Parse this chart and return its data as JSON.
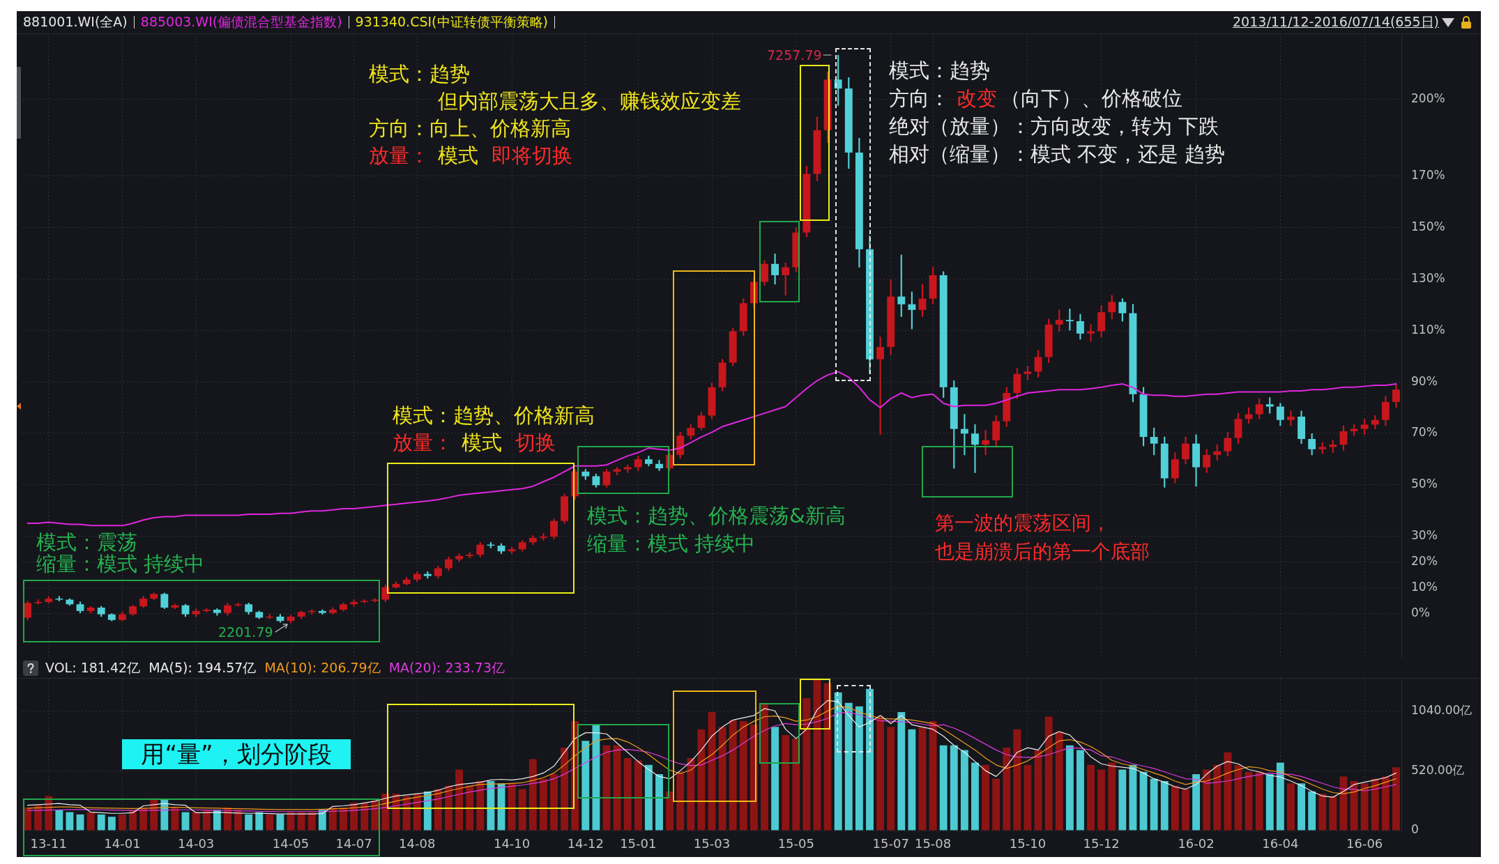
{
  "chart_data": [
    {
      "type": "candlestick",
      "title": "881001.WI(全A)",
      "categories": [
        null,
        null,
        null,
        null,
        null,
        null,
        null,
        null,
        null,
        null,
        null,
        null,
        null,
        null,
        null,
        null,
        null,
        null,
        null,
        null,
        null,
        null,
        null,
        null,
        null,
        null,
        null,
        null,
        null,
        null,
        null,
        null,
        null,
        null,
        null,
        null,
        null,
        null,
        null,
        null,
        null,
        null,
        null,
        null,
        null,
        null,
        null,
        null,
        null,
        null,
        null,
        null,
        null,
        null,
        null,
        null,
        null,
        null,
        null,
        null,
        null,
        null,
        null,
        null,
        null,
        null,
        null,
        null,
        null,
        null,
        null,
        null,
        null,
        null,
        null,
        null,
        null,
        null,
        null,
        null,
        null,
        null,
        null,
        null,
        null,
        null,
        null,
        null,
        null,
        null,
        null,
        null,
        null,
        null,
        null,
        null,
        null,
        null,
        null,
        null,
        null,
        null,
        null,
        null,
        null,
        null,
        null,
        null,
        null,
        null,
        null,
        null,
        null,
        null,
        null,
        null,
        null,
        null,
        null,
        null,
        null,
        null,
        null,
        null,
        null,
        null,
        null,
        null,
        null,
        null,
        null
      ],
      "series": [
        {
          "ohlc": [
            [
              -1.7,
              4.8,
              -2.6,
              4.0
            ],
            [
              4.0,
              5.3,
              3.5,
              4.4
            ],
            [
              4.4,
              6.6,
              4.0,
              5.7
            ],
            [
              5.7,
              6.6,
              4.8,
              5.3
            ],
            [
              5.3,
              5.7,
              3.1,
              3.5
            ],
            [
              3.5,
              4.4,
              0.0,
              0.9
            ],
            [
              0.9,
              2.7,
              0.0,
              2.2
            ],
            [
              2.2,
              2.7,
              -1.3,
              -0.4
            ],
            [
              -0.4,
              0.0,
              -3.0,
              -2.6
            ],
            [
              -2.6,
              0.5,
              -3.0,
              -0.4
            ],
            [
              -0.4,
              3.1,
              -0.8,
              2.7
            ],
            [
              2.7,
              6.6,
              2.2,
              5.7
            ],
            [
              5.7,
              7.9,
              5.3,
              7.5
            ],
            [
              7.5,
              7.9,
              1.8,
              2.2
            ],
            [
              2.2,
              3.5,
              1.8,
              3.1
            ],
            [
              3.1,
              3.5,
              -1.3,
              -0.4
            ],
            [
              -0.4,
              1.8,
              -1.3,
              0.9
            ],
            [
              0.9,
              1.8,
              0.5,
              1.4
            ],
            [
              1.4,
              1.8,
              -0.8,
              0.0
            ],
            [
              0.0,
              4.0,
              -0.8,
              3.1
            ],
            [
              3.1,
              4.0,
              2.7,
              3.5
            ],
            [
              3.5,
              4.0,
              -0.4,
              0.5
            ],
            [
              0.5,
              0.9,
              -2.1,
              -1.7
            ],
            [
              -1.7,
              -0.4,
              -2.1,
              -1.3
            ],
            [
              -1.3,
              -0.4,
              -3.5,
              -3.0
            ],
            [
              -3.0,
              -0.8,
              -3.8,
              -1.3
            ],
            [
              -1.3,
              0.9,
              -2.1,
              0.5
            ],
            [
              0.5,
              1.4,
              -0.4,
              0.9
            ],
            [
              0.9,
              1.4,
              -0.4,
              0.0
            ],
            [
              0.0,
              2.2,
              -0.4,
              1.4
            ],
            [
              1.4,
              4.0,
              0.9,
              3.5
            ],
            [
              3.5,
              5.3,
              2.7,
              4.4
            ],
            [
              4.4,
              5.3,
              4.0,
              4.8
            ],
            [
              4.8,
              5.7,
              4.4,
              5.3
            ],
            [
              5.3,
              11.0,
              4.4,
              10.1
            ],
            [
              10.1,
              12.3,
              9.7,
              11.4
            ],
            [
              11.4,
              14.0,
              11.0,
              13.1
            ],
            [
              13.1,
              16.2,
              12.3,
              15.3
            ],
            [
              15.3,
              16.2,
              13.6,
              14.5
            ],
            [
              14.5,
              18.4,
              13.6,
              17.5
            ],
            [
              17.5,
              21.9,
              16.6,
              21.0
            ],
            [
              21.0,
              23.2,
              20.1,
              22.3
            ],
            [
              22.3,
              23.6,
              21.5,
              22.8
            ],
            [
              22.8,
              27.6,
              21.9,
              26.7
            ],
            [
              26.7,
              27.6,
              25.4,
              26.3
            ],
            [
              26.3,
              27.1,
              23.2,
              24.1
            ],
            [
              24.1,
              25.8,
              23.2,
              24.9
            ],
            [
              24.9,
              28.4,
              24.1,
              27.6
            ],
            [
              27.6,
              30.2,
              26.7,
              29.3
            ],
            [
              29.3,
              31.1,
              28.4,
              29.8
            ],
            [
              29.8,
              36.7,
              28.9,
              35.9
            ],
            [
              35.9,
              46.4,
              35.0,
              45.5
            ],
            [
              45.5,
              56.0,
              44.2,
              55.1
            ],
            [
              55.1,
              56.0,
              52.0,
              53.3
            ],
            [
              53.3,
              54.2,
              49.0,
              49.8
            ],
            [
              49.8,
              56.0,
              49.0,
              55.1
            ],
            [
              55.1,
              56.8,
              53.8,
              56.0
            ],
            [
              56.0,
              57.7,
              54.7,
              56.8
            ],
            [
              56.8,
              61.2,
              55.5,
              59.9
            ],
            [
              59.9,
              61.2,
              57.3,
              58.1
            ],
            [
              58.1,
              59.5,
              55.5,
              56.4
            ],
            [
              56.4,
              62.5,
              55.5,
              61.6
            ],
            [
              61.6,
              70.4,
              60.3,
              69.1
            ],
            [
              69.1,
              73.4,
              67.8,
              72.1
            ],
            [
              72.1,
              78.2,
              71.3,
              76.9
            ],
            [
              76.9,
              89.6,
              75.6,
              87.9
            ],
            [
              87.9,
              98.8,
              86.5,
              97.5
            ],
            [
              97.5,
              111.0,
              96.2,
              109.7
            ],
            [
              109.7,
              122.4,
              108.0,
              120.6
            ],
            [
              120.6,
              130.7,
              118.9,
              128.9
            ],
            [
              128.9,
              137.2,
              127.6,
              135.9
            ],
            [
              135.9,
              139.8,
              128.0,
              131.5
            ],
            [
              131.5,
              136.3,
              123.7,
              134.6
            ],
            [
              134.6,
              149.9,
              132.9,
              148.1
            ],
            [
              148.1,
              173.9,
              146.4,
              170.9
            ],
            [
              170.9,
              193.1,
              168.2,
              187.9
            ],
            [
              187.9,
              210.6,
              183.1,
              207.6
            ],
            [
              207.6,
              217.1,
              197.5,
              204.1
            ],
            [
              204.1,
              208.4,
              173.0,
              179.2
            ],
            [
              179.2,
              184.8,
              134.6,
              141.6
            ],
            [
              141.6,
              146.8,
              93.1,
              98.8
            ],
            [
              98.8,
              107.5,
              69.5,
              103.6
            ],
            [
              103.6,
              129.8,
              100.5,
              123.2
            ],
            [
              123.2,
              139.4,
              115.4,
              120.2
            ],
            [
              120.2,
              125.0,
              110.6,
              118.0
            ],
            [
              118.0,
              128.0,
              115.4,
              122.4
            ],
            [
              122.4,
              134.6,
              120.2,
              131.5
            ],
            [
              131.5,
              132.9,
              83.9,
              87.9
            ],
            [
              87.9,
              90.5,
              56.4,
              71.7
            ],
            [
              71.7,
              77.4,
              61.6,
              69.9
            ],
            [
              69.9,
              73.4,
              54.7,
              65.6
            ],
            [
              65.6,
              71.3,
              61.6,
              67.3
            ],
            [
              67.3,
              76.9,
              65.1,
              74.7
            ],
            [
              74.7,
              87.9,
              72.6,
              85.7
            ],
            [
              85.7,
              95.3,
              83.5,
              93.1
            ],
            [
              93.1,
              96.2,
              90.9,
              94.0
            ],
            [
              94.0,
              102.3,
              91.8,
              99.7
            ],
            [
              99.7,
              114.5,
              97.5,
              112.3
            ],
            [
              112.3,
              118.0,
              109.7,
              114.1
            ],
            [
              114.1,
              118.4,
              110.1,
              113.6
            ],
            [
              113.6,
              116.3,
              106.6,
              108.8
            ],
            [
              108.8,
              112.3,
              105.8,
              109.7
            ],
            [
              109.7,
              119.7,
              107.5,
              117.1
            ],
            [
              117.1,
              123.7,
              114.5,
              121.1
            ],
            [
              121.1,
              122.4,
              113.6,
              116.7
            ],
            [
              116.7,
              120.2,
              82.2,
              85.2
            ],
            [
              85.2,
              87.9,
              65.1,
              68.6
            ],
            [
              68.6,
              72.1,
              61.6,
              66.0
            ],
            [
              66.0,
              68.6,
              49.0,
              52.5
            ],
            [
              52.5,
              62.5,
              50.7,
              59.9
            ],
            [
              59.9,
              68.6,
              58.1,
              66.0
            ],
            [
              66.0,
              69.5,
              49.4,
              56.8
            ],
            [
              56.8,
              63.8,
              54.7,
              61.6
            ],
            [
              61.6,
              65.6,
              59.5,
              63.0
            ],
            [
              63.0,
              70.4,
              61.2,
              68.2
            ],
            [
              68.2,
              77.8,
              66.0,
              75.6
            ],
            [
              75.6,
              80.0,
              73.9,
              77.4
            ],
            [
              77.4,
              83.5,
              75.6,
              81.3
            ],
            [
              81.3,
              83.9,
              77.8,
              80.4
            ],
            [
              80.4,
              81.7,
              73.0,
              75.2
            ],
            [
              75.2,
              78.7,
              73.0,
              76.5
            ],
            [
              76.5,
              78.7,
              66.0,
              67.8
            ],
            [
              67.8,
              69.9,
              61.6,
              63.8
            ],
            [
              63.8,
              66.4,
              62.1,
              64.7
            ],
            [
              64.7,
              67.3,
              62.5,
              65.6
            ],
            [
              65.6,
              73.0,
              63.4,
              70.8
            ],
            [
              70.8,
              73.4,
              69.1,
              71.7
            ],
            [
              71.7,
              75.6,
              69.5,
              73.4
            ],
            [
              73.4,
              76.9,
              71.7,
              75.2
            ],
            [
              75.2,
              84.4,
              73.0,
              82.2
            ],
            [
              82.2,
              89.2,
              80.0,
              87.0
            ]
          ],
          "colors": [
            "#c8161d",
            "#c8161d",
            "#c8161d",
            "#52d0d8",
            "#52d0d8",
            "#52d0d8",
            "#c8161d",
            "#52d0d8",
            "#52d0d8",
            "#c8161d",
            "#c8161d",
            "#c8161d",
            "#c8161d",
            "#52d0d8",
            "#c8161d",
            "#52d0d8",
            "#c8161d",
            "#c8161d",
            "#52d0d8",
            "#c8161d",
            "#c8161d",
            "#52d0d8",
            "#52d0d8",
            "#c8161d",
            "#52d0d8",
            "#c8161d",
            "#c8161d",
            "#c8161d",
            "#52d0d8",
            "#c8161d",
            "#c8161d",
            "#c8161d",
            "#c8161d",
            "#c8161d",
            "#c8161d",
            "#c8161d",
            "#c8161d",
            "#c8161d",
            "#52d0d8",
            "#c8161d",
            "#c8161d",
            "#c8161d",
            "#c8161d",
            "#c8161d",
            "#52d0d8",
            "#52d0d8",
            "#c8161d",
            "#c8161d",
            "#c8161d",
            "#c8161d",
            "#c8161d",
            "#c8161d",
            "#c8161d",
            "#52d0d8",
            "#52d0d8",
            "#c8161d",
            "#c8161d",
            "#c8161d",
            "#c8161d",
            "#52d0d8",
            "#52d0d8",
            "#c8161d",
            "#c8161d",
            "#c8161d",
            "#c8161d",
            "#c8161d",
            "#c8161d",
            "#c8161d",
            "#c8161d",
            "#c8161d",
            "#c8161d",
            "#52d0d8",
            "#c8161d",
            "#c8161d",
            "#c8161d",
            "#c8161d",
            "#c8161d",
            "#52d0d8",
            "#52d0d8",
            "#52d0d8",
            "#52d0d8",
            "#c8161d",
            "#c8161d",
            "#52d0d8",
            "#52d0d8",
            "#c8161d",
            "#c8161d",
            "#52d0d8",
            "#52d0d8",
            "#52d0d8",
            "#52d0d8",
            "#c8161d",
            "#c8161d",
            "#c8161d",
            "#c8161d",
            "#c8161d",
            "#c8161d",
            "#c8161d",
            "#c8161d",
            "#52d0d8",
            "#52d0d8",
            "#c8161d",
            "#c8161d",
            "#c8161d",
            "#52d0d8",
            "#52d0d8",
            "#52d0d8",
            "#52d0d8",
            "#52d0d8",
            "#c8161d",
            "#c8161d",
            "#52d0d8",
            "#c8161d",
            "#c8161d",
            "#c8161d",
            "#c8161d",
            "#c8161d",
            "#c8161d",
            "#52d0d8",
            "#52d0d8",
            "#c8161d",
            "#52d0d8",
            "#52d0d8",
            "#c8161d",
            "#c8161d",
            "#c8161d",
            "#c8161d",
            "#c8161d",
            "#c8161d",
            "#c8161d",
            "#c8161d"
          ]
        },
        {
          "name": "885003.WI(偏债混合型基金指数)",
          "type": "line",
          "color": "#e026e0",
          "values": [
            35.0,
            35.0,
            35.4,
            35.0,
            34.6,
            34.6,
            34.1,
            34.1,
            34.1,
            34.1,
            35.0,
            36.3,
            37.2,
            37.6,
            37.6,
            38.1,
            38.1,
            38.1,
            38.1,
            38.1,
            38.1,
            38.5,
            38.5,
            38.5,
            38.9,
            38.9,
            39.4,
            39.8,
            39.8,
            40.2,
            40.7,
            40.7,
            41.1,
            41.5,
            42.0,
            42.4,
            42.9,
            43.3,
            43.7,
            44.2,
            45.0,
            45.9,
            46.4,
            46.8,
            47.2,
            47.7,
            48.1,
            48.5,
            49.4,
            51.2,
            52.9,
            55.1,
            57.3,
            57.3,
            57.3,
            57.7,
            59.5,
            61.2,
            62.5,
            64.3,
            63.8,
            63.4,
            64.3,
            66.4,
            68.6,
            70.4,
            72.6,
            73.9,
            75.2,
            76.5,
            77.8,
            79.1,
            80.4,
            83.9,
            87.4,
            90.5,
            92.7,
            94.0,
            91.8,
            87.9,
            83.0,
            80.0,
            83.5,
            85.7,
            83.9,
            84.8,
            85.2,
            81.7,
            80.4,
            80.9,
            80.9,
            80.9,
            81.7,
            83.0,
            84.4,
            85.7,
            86.1,
            86.5,
            87.0,
            87.0,
            87.0,
            87.4,
            87.9,
            88.7,
            89.2,
            87.9,
            85.2,
            84.8,
            84.8,
            84.4,
            84.4,
            84.8,
            85.2,
            85.2,
            85.7,
            86.1,
            86.1,
            86.1,
            86.1,
            86.1,
            86.5,
            86.5,
            87.0,
            87.0,
            87.4,
            87.9,
            87.9,
            88.3,
            88.7,
            88.7,
            89.2
          ]
        }
      ],
      "ylim": [
        -17.3,
        225
      ],
      "yticks": [
        {
          "value": 0,
          "label": "0%"
        },
        {
          "value": 10,
          "label": "10%"
        },
        {
          "value": 20,
          "label": "20%"
        },
        {
          "value": 30,
          "label": "30%"
        },
        {
          "value": 50,
          "label": "50%"
        },
        {
          "value": 70,
          "label": "70%"
        },
        {
          "value": 90,
          "label": "90%"
        },
        {
          "value": 110,
          "label": "110%"
        },
        {
          "value": 130,
          "label": "130%"
        },
        {
          "value": 150,
          "label": "150%"
        },
        {
          "value": 170,
          "label": "170%"
        },
        {
          "value": 200,
          "label": "200%"
        }
      ],
      "grid": true,
      "legend": "top left",
      "tick_labels": "y",
      "annotations": [
        "2013/11/12-2016/07/14(655日)",
        "7257.79",
        "2201.79",
        "模式：趋势",
        "但内部震荡大且多、赚钱效应变差",
        "方向：向上、价格新高",
        "放量：",
        "模式",
        "即将切换",
        "模式：趋势、价格新高",
        "放量：",
        "模式",
        "切换",
        "模式：趋势、价格震荡&新高",
        "缩量：模式 持续中",
        "模式：震荡",
        "缩量：模式 持续中",
        "模式：趋势",
        "方向：",
        "改变",
        "（向下）、价格破位",
        "绝对（放量）：方向改变，转为 下跌",
        "相对（缩量）：模式 不变，还是 趋势",
        "第一波的震荡区间，",
        "也是崩溃后的第一个底部",
        "931340.CSI(中证转债平衡策略)"
      ]
    },
    {
      "type": "bar",
      "title": "VOL: 181.42亿",
      "categories": [
        null,
        null,
        "13-11",
        null,
        null,
        null,
        null,
        null,
        null,
        "14-01",
        null,
        null,
        null,
        null,
        null,
        null,
        "14-03",
        null,
        null,
        null,
        null,
        null,
        null,
        null,
        null,
        "14-05",
        null,
        null,
        null,
        null,
        null,
        "14-07",
        null,
        null,
        null,
        null,
        null,
        "14-08",
        null,
        null,
        null,
        null,
        null,
        null,
        null,
        null,
        "14-10",
        null,
        null,
        null,
        null,
        null,
        null,
        "14-12",
        null,
        null,
        null,
        null,
        "15-01",
        null,
        null,
        null,
        null,
        null,
        null,
        "15-03",
        null,
        null,
        null,
        null,
        null,
        null,
        null,
        "15-05",
        null,
        null,
        null,
        null,
        null,
        null,
        null,
        null,
        "15-07",
        null,
        null,
        null,
        "15-08",
        null,
        null,
        null,
        null,
        null,
        null,
        null,
        null,
        "15-10",
        null,
        null,
        null,
        null,
        null,
        null,
        "15-12",
        null,
        null,
        null,
        null,
        null,
        null,
        null,
        null,
        "16-02",
        null,
        null,
        null,
        null,
        null,
        null,
        null,
        "16-04",
        null,
        null,
        null,
        null,
        null,
        null,
        null,
        "16-06",
        null,
        null,
        null
      ],
      "series": [
        {
          "values": [
            200,
            220,
            300,
            180,
            160,
            140,
            160,
            140,
            120,
            140,
            180,
            200,
            280,
            270,
            200,
            160,
            160,
            180,
            180,
            200,
            180,
            140,
            160,
            140,
            140,
            160,
            160,
            160,
            180,
            200,
            200,
            240,
            240,
            260,
            320,
            320,
            300,
            320,
            340,
            360,
            390,
            530,
            390,
            430,
            430,
            410,
            410,
            360,
            620,
            450,
            490,
            720,
            950,
            780,
            920,
            740,
            740,
            630,
            610,
            570,
            490,
            340,
            510,
            630,
            880,
            1030,
            900,
            960,
            950,
            920,
            1110,
            900,
            830,
            800,
            1150,
            1310,
            1280,
            1200,
            1110,
            1080,
            1230,
            990,
            900,
            1030,
            880,
            900,
            950,
            740,
            740,
            700,
            590,
            570,
            450,
            720,
            880,
            570,
            700,
            990,
            860,
            740,
            700,
            570,
            530,
            590,
            530,
            570,
            510,
            450,
            430,
            390,
            360,
            490,
            530,
            570,
            680,
            570,
            510,
            510,
            490,
            590,
            410,
            410,
            340,
            320,
            300,
            470,
            430,
            410,
            450,
            470,
            550
          ],
          "colors": [
            "#8e1414",
            "#8e1414",
            "#8e1414",
            "#4ccad2",
            "#4ccad2",
            "#4ccad2",
            "#8e1414",
            "#4ccad2",
            "#4ccad2",
            "#8e1414",
            "#8e1414",
            "#8e1414",
            "#8e1414",
            "#4ccad2",
            "#8e1414",
            "#4ccad2",
            "#8e1414",
            "#8e1414",
            "#4ccad2",
            "#8e1414",
            "#8e1414",
            "#4ccad2",
            "#4ccad2",
            "#8e1414",
            "#4ccad2",
            "#8e1414",
            "#8e1414",
            "#8e1414",
            "#4ccad2",
            "#8e1414",
            "#8e1414",
            "#8e1414",
            "#8e1414",
            "#8e1414",
            "#8e1414",
            "#8e1414",
            "#8e1414",
            "#8e1414",
            "#4ccad2",
            "#8e1414",
            "#8e1414",
            "#8e1414",
            "#8e1414",
            "#8e1414",
            "#4ccad2",
            "#4ccad2",
            "#8e1414",
            "#8e1414",
            "#8e1414",
            "#8e1414",
            "#8e1414",
            "#8e1414",
            "#8e1414",
            "#4ccad2",
            "#4ccad2",
            "#8e1414",
            "#8e1414",
            "#8e1414",
            "#8e1414",
            "#4ccad2",
            "#4ccad2",
            "#8e1414",
            "#8e1414",
            "#8e1414",
            "#8e1414",
            "#8e1414",
            "#8e1414",
            "#8e1414",
            "#8e1414",
            "#8e1414",
            "#8e1414",
            "#4ccad2",
            "#8e1414",
            "#8e1414",
            "#8e1414",
            "#8e1414",
            "#8e1414",
            "#4ccad2",
            "#4ccad2",
            "#4ccad2",
            "#4ccad2",
            "#8e1414",
            "#8e1414",
            "#4ccad2",
            "#4ccad2",
            "#8e1414",
            "#8e1414",
            "#4ccad2",
            "#4ccad2",
            "#4ccad2",
            "#4ccad2",
            "#8e1414",
            "#8e1414",
            "#8e1414",
            "#8e1414",
            "#8e1414",
            "#8e1414",
            "#8e1414",
            "#8e1414",
            "#4ccad2",
            "#4ccad2",
            "#8e1414",
            "#8e1414",
            "#8e1414",
            "#4ccad2",
            "#4ccad2",
            "#4ccad2",
            "#4ccad2",
            "#4ccad2",
            "#8e1414",
            "#8e1414",
            "#4ccad2",
            "#8e1414",
            "#8e1414",
            "#8e1414",
            "#8e1414",
            "#8e1414",
            "#8e1414",
            "#4ccad2",
            "#4ccad2",
            "#8e1414",
            "#4ccad2",
            "#4ccad2",
            "#8e1414",
            "#8e1414",
            "#8e1414",
            "#8e1414",
            "#8e1414",
            "#8e1414",
            "#8e1414",
            "#8e1414"
          ]
        },
        {
          "name": "MA(5): 194.57亿",
          "type": "line",
          "color": "#ececec",
          "values": [
            220,
            225,
            230,
            235,
            225,
            220,
            160,
            155,
            150,
            150,
            155,
            215,
            225,
            235,
            225,
            220,
            155,
            155,
            158,
            155,
            152,
            150,
            150,
            148,
            145,
            145,
            145,
            145,
            148,
            210,
            215,
            225,
            240,
            255,
            280,
            300,
            310,
            320,
            330,
            350,
            380,
            400,
            410,
            420,
            440,
            445,
            440,
            450,
            470,
            500,
            560,
            680,
            800,
            850,
            850,
            840,
            760,
            680,
            600,
            530,
            470,
            450,
            520,
            600,
            700,
            820,
            900,
            960,
            980,
            1000,
            1060,
            1040,
            880,
            800,
            880,
            1050,
            1130,
            1120,
            1000,
            900,
            940,
            1000,
            930,
            1000,
            920,
            900,
            880,
            820,
            740,
            680,
            600,
            520,
            470,
            560,
            680,
            720,
            700,
            820,
            860,
            830,
            740,
            640,
            580,
            560,
            550,
            540,
            500,
            450,
            420,
            380,
            360,
            400,
            490,
            560,
            600,
            580,
            530,
            510,
            480,
            465,
            430,
            390,
            340,
            300,
            290,
            340,
            400,
            420,
            440,
            460,
            500
          ]
        },
        {
          "name": "MA(10): 206.79亿",
          "type": "line",
          "color": "#f29a1c",
          "values": [
            195,
            198,
            200,
            205,
            205,
            200,
            198,
            196,
            195,
            193,
            192,
            193,
            196,
            200,
            202,
            200,
            198,
            196,
            194,
            192,
            190,
            188,
            186,
            184,
            182,
            182,
            182,
            183,
            185,
            188,
            192,
            198,
            205,
            215,
            235,
            255,
            275,
            290,
            305,
            320,
            345,
            365,
            385,
            400,
            405,
            405,
            410,
            415,
            435,
            460,
            500,
            570,
            650,
            720,
            780,
            795,
            800,
            770,
            720,
            660,
            590,
            525,
            495,
            525,
            600,
            660,
            740,
            830,
            900,
            950,
            990,
            995,
            980,
            950,
            960,
            990,
            1040,
            1080,
            1070,
            1030,
            1000,
            975,
            970,
            970,
            960,
            945,
            930,
            880,
            820,
            760,
            700,
            630,
            570,
            540,
            570,
            605,
            660,
            720,
            780,
            790,
            770,
            730,
            675,
            610,
            580,
            560,
            530,
            500,
            470,
            430,
            400,
            420,
            430,
            460,
            500,
            530,
            555,
            545,
            520,
            510,
            470,
            440,
            400,
            360,
            330,
            320,
            335,
            365,
            390,
            420,
            450
          ]
        },
        {
          "name": "MA(20): 233.73亿",
          "type": "line",
          "color": "#e03ae0",
          "values": [
            175,
            175,
            178,
            180,
            182,
            182,
            182,
            180,
            178,
            176,
            175,
            175,
            176,
            178,
            180,
            180,
            180,
            178,
            176,
            174,
            172,
            170,
            168,
            166,
            165,
            165,
            165,
            165,
            166,
            168,
            170,
            175,
            182,
            190,
            200,
            215,
            230,
            245,
            260,
            275,
            295,
            315,
            335,
            350,
            365,
            375,
            385,
            395,
            410,
            425,
            450,
            490,
            540,
            590,
            640,
            680,
            700,
            705,
            695,
            680,
            650,
            610,
            580,
            565,
            570,
            610,
            650,
            700,
            760,
            820,
            870,
            910,
            930,
            920,
            925,
            945,
            975,
            1020,
            1030,
            1005,
            975,
            955,
            950,
            945,
            940,
            925,
            910,
            920,
            890,
            850,
            800,
            750,
            700,
            660,
            640,
            635,
            640,
            660,
            690,
            720,
            715,
            700,
            650,
            640,
            610,
            580,
            560,
            540,
            510,
            480,
            450,
            445,
            410,
            420,
            430,
            450,
            470,
            485,
            500,
            490,
            490,
            470,
            440,
            410,
            380,
            360,
            360,
            345,
            360,
            380,
            400
          ]
        }
      ],
      "ylim": [
        0,
        1320
      ],
      "yticks": [
        0,
        {
          "value": 520,
          "label": "520.00亿"
        },
        {
          "value": 1040,
          "label": "1040.00亿"
        }
      ],
      "grid": true,
      "legend": "top left",
      "annotations": [
        "用“量”，划分阶段"
      ]
    }
  ]
}
